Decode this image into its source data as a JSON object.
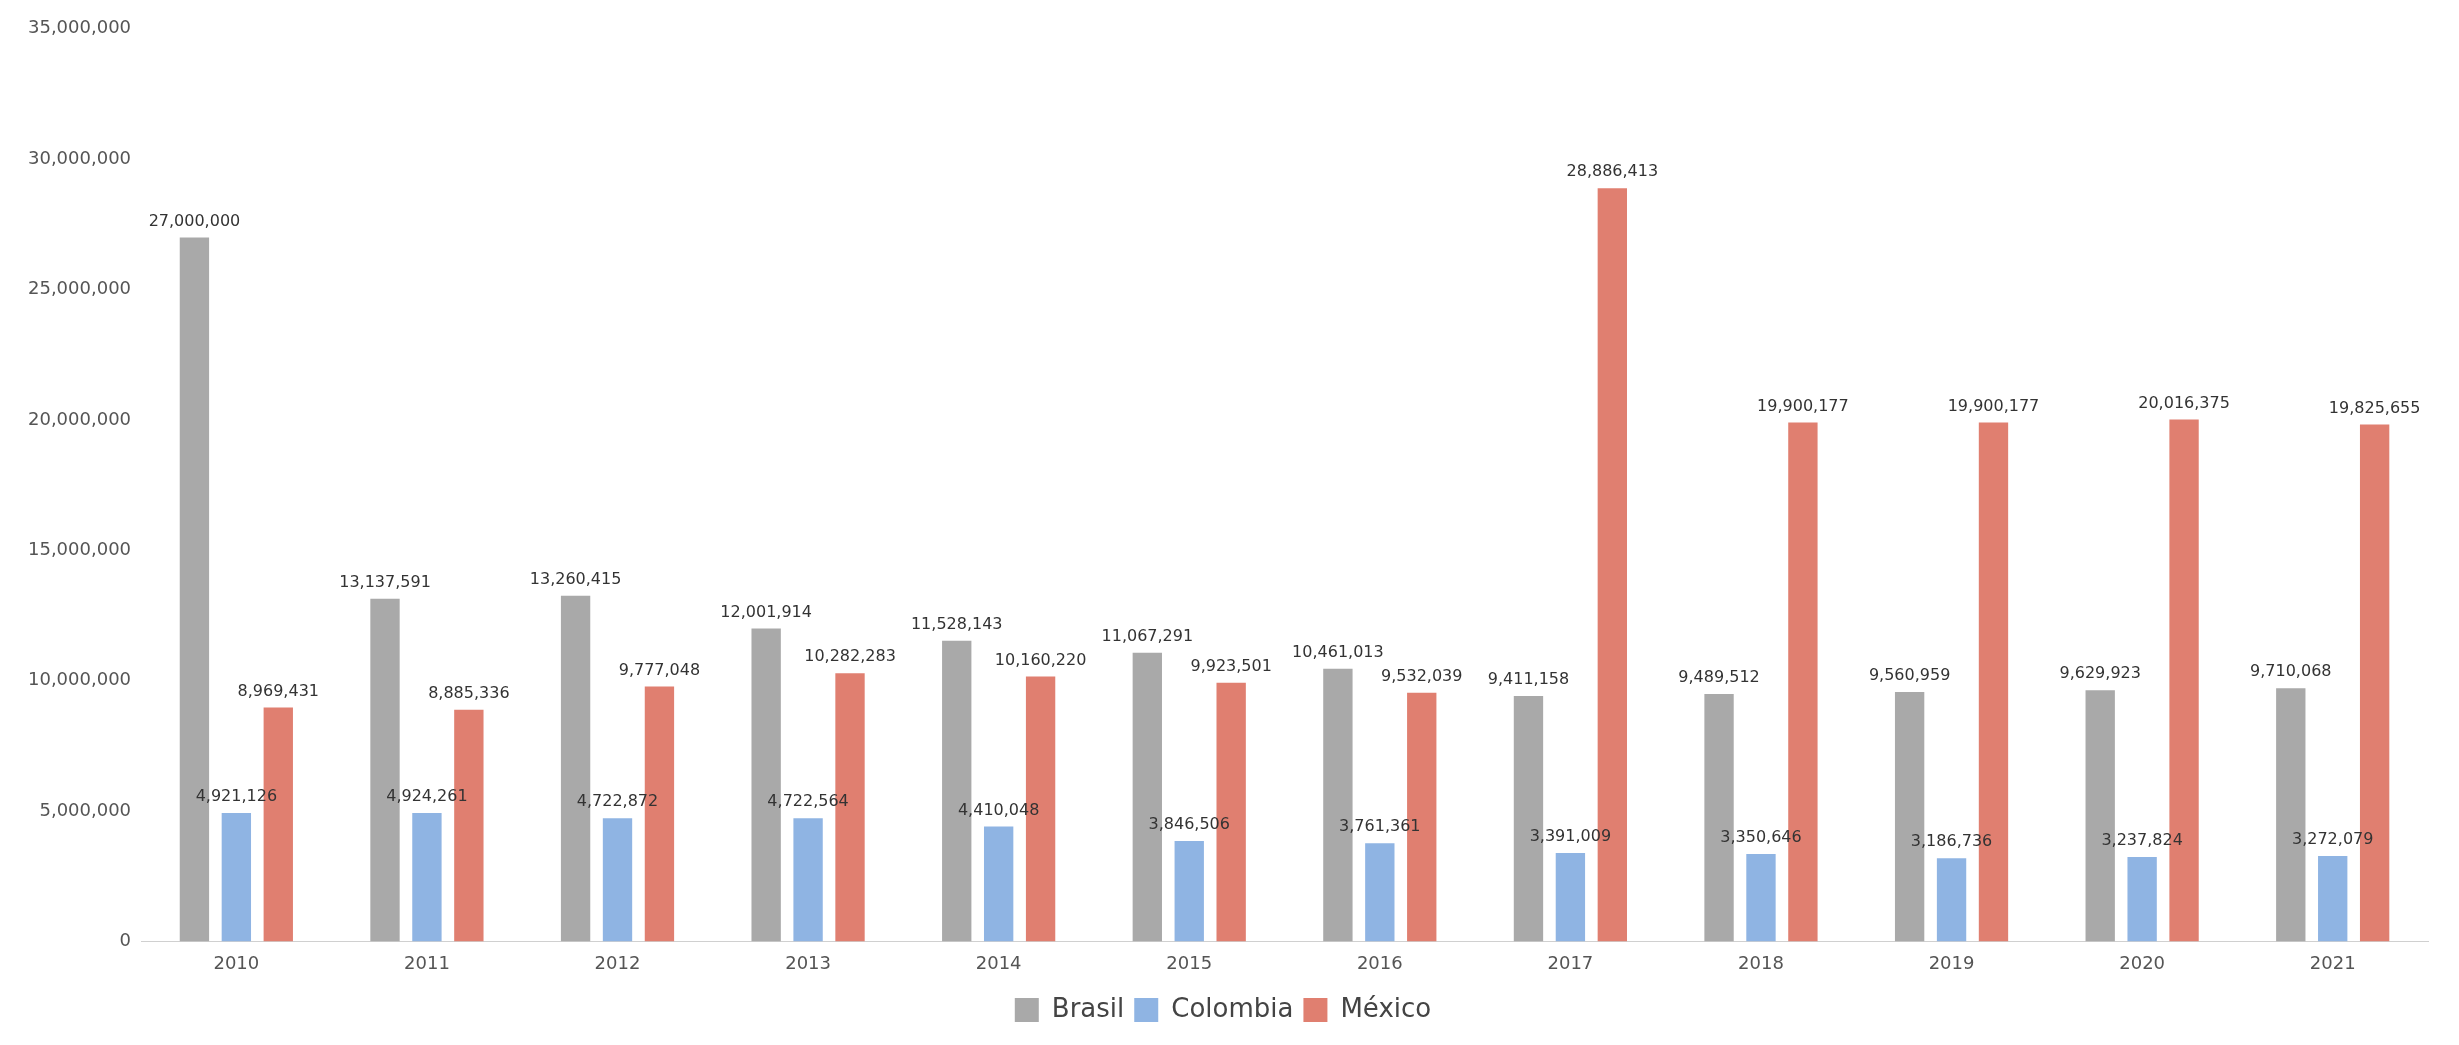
{
  "chart_data": {
    "type": "bar",
    "categories": [
      "2010",
      "2011",
      "2012",
      "2013",
      "2014",
      "2015",
      "2016",
      "2017",
      "2018",
      "2019",
      "2020",
      "2021"
    ],
    "series": [
      {
        "name": "Brasil",
        "color": "#a9a9a9",
        "values": [
          27000000,
          13137591,
          13260415,
          12001914,
          11528143,
          11067291,
          10461013,
          9411158,
          9489512,
          9560959,
          9629923,
          9710068
        ],
        "value_labels": [
          "27,000,000",
          "13,137,591",
          "13,260,415",
          "12,001,914",
          "11,528,143",
          "11,067,291",
          "10,461,013",
          "9,411,158",
          "9,489,512",
          "9,560,959",
          "9,629,923",
          "9,710,068"
        ]
      },
      {
        "name": "Colombia",
        "color": "#8fb4e3",
        "values": [
          4921126,
          4924261,
          4722872,
          4722564,
          4410048,
          3846506,
          3761361,
          3391009,
          3350646,
          3186736,
          3237824,
          3272079
        ],
        "value_labels": [
          "4,921,126",
          "4,924,261",
          "4,722,872",
          "4,722,564",
          "4,410,048",
          "3,846,506",
          "3,761,361",
          "3,391,009",
          "3,350,646",
          "3,186,736",
          "3,237,824",
          "3,272,079"
        ]
      },
      {
        "name": "México",
        "color": "#e07f70",
        "values": [
          8969431,
          8885336,
          9777048,
          10282283,
          10160220,
          9923501,
          9532039,
          28886413,
          19900177,
          19900177,
          20016375,
          19825655
        ],
        "value_labels": [
          "8,969,431",
          "8,885,336",
          "9,777,048",
          "10,282,283",
          "10,160,220",
          "9,923,501",
          "9,532,039",
          "28,886,413",
          "19,900,177",
          "19,900,177",
          "20,016,375",
          "19,825,655"
        ]
      }
    ],
    "ylim": [
      0,
      35000000
    ],
    "yticks": [
      0,
      {
        "value": 5000000,
        "label": "5,000,000"
      },
      {
        "value": 10000000,
        "label": "10,000,000"
      },
      {
        "value": 15000000,
        "label": "15,000,000"
      },
      {
        "value": 20000000,
        "label": "20,000,000"
      },
      {
        "value": 25000000,
        "label": "25,000,000"
      },
      {
        "value": 30000000,
        "label": "30,000,000"
      },
      {
        "value": 35000000,
        "label": "35,000,000"
      }
    ],
    "grid": false,
    "legend": "bottom"
  }
}
